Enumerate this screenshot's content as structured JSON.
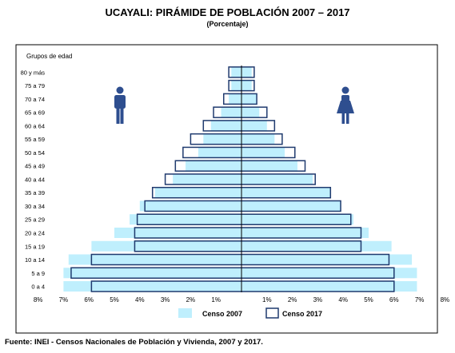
{
  "title": "UCAYALI: PIRÁMIDE DE POBLACIÓN 2007 – 2017",
  "subtitle": "(Porcentaje)",
  "source": "Fuente: INEI - Censos Nacionales de Población y Vivienda, 2007 y 2017.",
  "colors": {
    "censo_2007_fill": "#bfeffd",
    "censo_2017_stroke": "#1f3a6e",
    "icon_fill": "#2e4e8f",
    "frame": "#000000"
  },
  "icons": {
    "male": "male-person-icon",
    "female": "female-person-icon"
  },
  "chart_data": {
    "type": "bar",
    "orientation": "horizontal-population-pyramid",
    "ylabel": "Grupos de edad",
    "categories": [
      "80 y más",
      "75 a 79",
      "70 a 74",
      "65 a 69",
      "60 a 64",
      "55 a 59",
      "50 a 54",
      "45 a 49",
      "40 a 44",
      "35 a 39",
      "30 a 34",
      "25 a 29",
      "20 a 24",
      "15 a 19",
      "10 a 14",
      "5 a 9",
      "0 a 4"
    ],
    "xlim": [
      -8,
      8
    ],
    "xticks": [
      -8,
      -7,
      -6,
      -5,
      -4,
      -3,
      -2,
      -1,
      1,
      2,
      3,
      4,
      5,
      6,
      7,
      8
    ],
    "xtick_labels": [
      "8%",
      "7%",
      "6%",
      "5%",
      "4%",
      "3%",
      "2%",
      "1%",
      "1%",
      "2%",
      "3%",
      "4%",
      "5%",
      "6%",
      "7%",
      "8%"
    ],
    "left_side": "hombres",
    "right_side": "mujeres",
    "legend_position": "bottom",
    "series": [
      {
        "name": "Censo 2007",
        "style": "filled",
        "left": [
          0.4,
          0.4,
          0.5,
          0.8,
          1.2,
          1.5,
          1.7,
          2.2,
          2.7,
          3.4,
          4.0,
          4.4,
          5.0,
          5.9,
          6.8,
          7.0,
          7.0
        ],
        "right": [
          0.4,
          0.4,
          0.6,
          0.7,
          1.0,
          1.3,
          1.7,
          2.2,
          2.8,
          3.5,
          3.9,
          4.4,
          5.0,
          5.9,
          6.7,
          6.9,
          6.9
        ]
      },
      {
        "name": "Censo 2017",
        "style": "outline",
        "left": [
          0.5,
          0.5,
          0.7,
          1.1,
          1.5,
          2.0,
          2.3,
          2.6,
          3.0,
          3.5,
          3.8,
          4.1,
          4.2,
          4.2,
          5.9,
          6.7,
          5.9
        ],
        "right": [
          0.5,
          0.5,
          0.6,
          1.0,
          1.3,
          1.6,
          2.1,
          2.5,
          2.9,
          3.5,
          3.9,
          4.3,
          4.7,
          4.7,
          5.8,
          6.0,
          6.0
        ]
      }
    ]
  }
}
